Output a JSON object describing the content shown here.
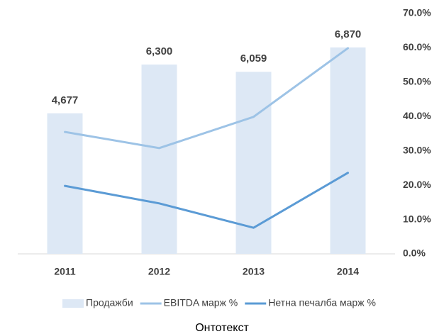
{
  "chart_data": {
    "type": "bar",
    "caption": "Онтотекст",
    "categories": [
      "2011",
      "2012",
      "2013",
      "2014"
    ],
    "series": [
      {
        "name": "Продажби",
        "type": "bar",
        "color": "#dde8f5",
        "values": [
          4677,
          6300,
          6059,
          6870
        ],
        "value_labels": [
          "4,677",
          "6,300",
          "6,059",
          "6,870"
        ]
      },
      {
        "name": "EBITDA марж %",
        "type": "line",
        "axis": "y2",
        "color": "#9dc3e6",
        "values": [
          35.5,
          30.8,
          39.9,
          59.9
        ]
      },
      {
        "name": "Нетна печалба марж %",
        "type": "line",
        "axis": "y2",
        "color": "#5b9bd5",
        "values": [
          19.8,
          14.7,
          7.6,
          23.6
        ]
      }
    ],
    "ylim": [
      0,
      8000
    ],
    "y2lim": [
      0,
      70
    ],
    "y2ticks": [
      {
        "value": 0,
        "label": "0.0%"
      },
      {
        "value": 10,
        "label": "10.0%"
      },
      {
        "value": 20,
        "label": "20.0%"
      },
      {
        "value": 30,
        "label": "30.0%"
      },
      {
        "value": 40,
        "label": "40.0%"
      },
      {
        "value": 50,
        "label": "50.0%"
      },
      {
        "value": 60,
        "label": "60.0%"
      },
      {
        "value": 70,
        "label": "70.0%"
      }
    ],
    "legend": "bottom"
  }
}
